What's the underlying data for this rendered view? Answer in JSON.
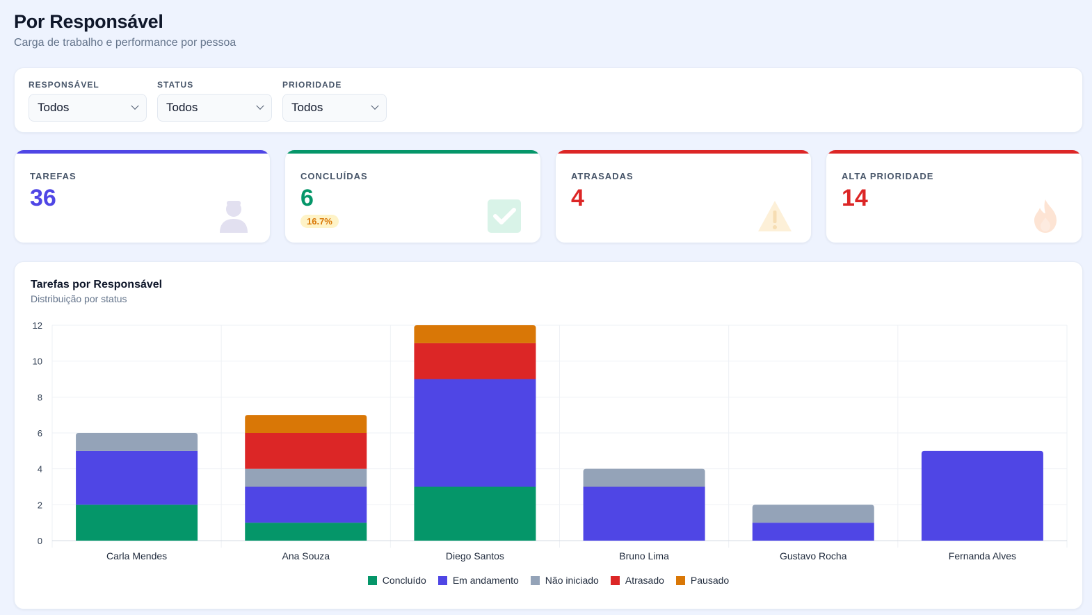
{
  "header": {
    "title": "Por Responsável",
    "subtitle": "Carga de trabalho e performance por pessoa"
  },
  "filters": [
    {
      "label": "RESPONSÁVEL",
      "value": "Todos"
    },
    {
      "label": "STATUS",
      "value": "Todos"
    },
    {
      "label": "PRIORIDADE",
      "value": "Todos"
    }
  ],
  "kpis": [
    {
      "label": "TAREFAS",
      "value": "36",
      "color": "#4f46e5",
      "icon": "person-icon"
    },
    {
      "label": "CONCLUÍDAS",
      "value": "6",
      "badge": "16.7%",
      "color": "#059669",
      "icon": "checkmark-icon"
    },
    {
      "label": "ATRASADAS",
      "value": "4",
      "color": "#dc2626",
      "icon": "warning-icon"
    },
    {
      "label": "ALTA PRIORIDADE",
      "value": "14",
      "color": "#dc2626",
      "icon": "fire-icon"
    }
  ],
  "chart": {
    "title": "Tarefas por Responsável",
    "subtitle": "Distribuição por status"
  },
  "chart_data": {
    "type": "bar",
    "stacked": true,
    "categories": [
      "Carla Mendes",
      "Ana Souza",
      "Diego Santos",
      "Bruno Lima",
      "Gustavo Rocha",
      "Fernanda Alves"
    ],
    "series": [
      {
        "name": "Concluído",
        "color": "#059669",
        "values": [
          2,
          1,
          3,
          0,
          0,
          0
        ]
      },
      {
        "name": "Em andamento",
        "color": "#4f46e5",
        "values": [
          3,
          2,
          6,
          3,
          1,
          5
        ]
      },
      {
        "name": "Não iniciado",
        "color": "#94a3b8",
        "values": [
          1,
          1,
          0,
          1,
          1,
          0
        ]
      },
      {
        "name": "Atrasado",
        "color": "#dc2626",
        "values": [
          0,
          2,
          2,
          0,
          0,
          0
        ]
      },
      {
        "name": "Pausado",
        "color": "#d97706",
        "values": [
          0,
          1,
          1,
          0,
          0,
          0
        ]
      }
    ],
    "yticks": [
      "0",
      "2",
      "4",
      "6",
      "8",
      "10",
      "12"
    ],
    "ylim": [
      0,
      12
    ],
    "grid": true,
    "legend": "bottom-center"
  }
}
